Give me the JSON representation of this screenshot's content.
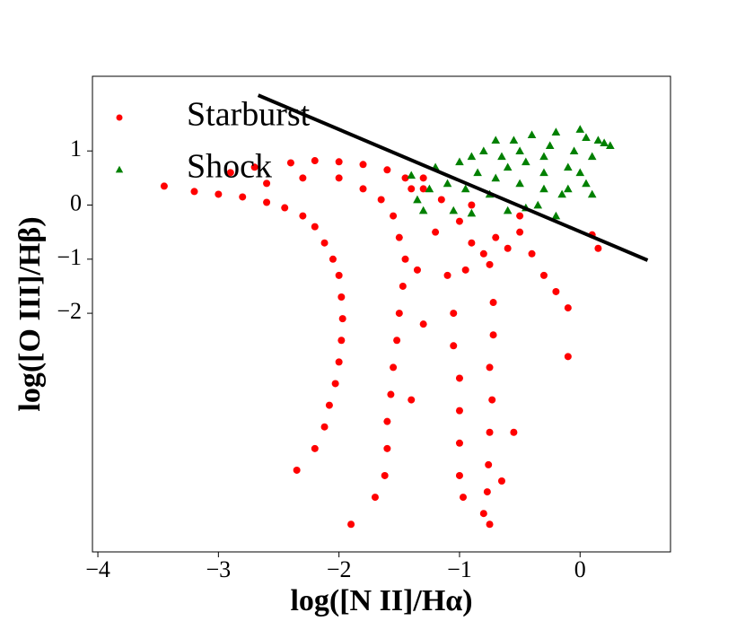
{
  "chart_data": {
    "type": "scatter",
    "xlabel": "log([N II]/Hα)",
    "ylabel": "log([O III]/Hβ)",
    "xlim": [
      -4.045,
      0.75
    ],
    "ylim": [
      -6.41,
      2.38
    ],
    "xticks": [
      {
        "value": -4,
        "label": "−4"
      },
      {
        "value": -3,
        "label": "−3"
      },
      {
        "value": -2,
        "label": "−2"
      },
      {
        "value": -1,
        "label": "−1"
      },
      0
    ],
    "yticks": [
      1,
      0,
      {
        "value": -1,
        "label": "−1"
      },
      {
        "value": -2,
        "label": "−2"
      }
    ],
    "legend": "upper left",
    "series": [
      {
        "name": "Starburst",
        "color": "#ff0000",
        "marker": "circle",
        "x": [
          -3.45,
          -3.2,
          -3.0,
          -2.8,
          -2.6,
          -2.45,
          -2.3,
          -2.2,
          -2.12,
          -2.05,
          -2.0,
          -1.98,
          -1.97,
          -1.98,
          -2.0,
          -2.03,
          -2.08,
          -2.12,
          -2.2,
          -2.35,
          -1.9,
          -2.9,
          -2.7,
          -2.4,
          -2.2,
          -2.0,
          -1.8,
          -1.6,
          -1.45,
          -1.3,
          -1.15,
          -2.6,
          -2.3,
          -2.0,
          -1.8,
          -1.65,
          -1.55,
          -1.5,
          -1.45,
          -1.47,
          -1.5,
          -1.52,
          -1.55,
          -1.57,
          -1.6,
          -1.6,
          -1.62,
          -1.7,
          -1.35,
          -1.3,
          -1.4,
          -1.1,
          -1.05,
          -1.05,
          -1.0,
          -1.0,
          -1.0,
          -1.0,
          -0.97,
          -0.72,
          -0.72,
          -0.75,
          -0.73,
          -0.75,
          -0.76,
          -0.77,
          -0.75,
          -0.8,
          -0.65,
          -0.55,
          -1.2,
          -1.0,
          -0.9,
          -0.8,
          -0.7,
          -0.6,
          -0.75,
          -0.5,
          -0.4,
          -0.3,
          -0.2,
          -0.1,
          0.15,
          -0.1,
          -1.3,
          -1.4,
          -0.9,
          -0.5,
          0.1,
          -0.95
        ],
        "y": [
          0.35,
          0.25,
          0.2,
          0.15,
          0.05,
          -0.05,
          -0.2,
          -0.4,
          -0.7,
          -1.0,
          -1.3,
          -1.7,
          -2.1,
          -2.5,
          -2.9,
          -3.3,
          -3.7,
          -4.1,
          -4.5,
          -4.9,
          -5.9,
          0.6,
          0.7,
          0.78,
          0.82,
          0.8,
          0.75,
          0.65,
          0.5,
          0.3,
          0.1,
          0.4,
          0.5,
          0.5,
          0.3,
          0.1,
          -0.2,
          -0.6,
          -1.0,
          -1.5,
          -2.0,
          -2.5,
          -3.0,
          -3.5,
          -4.0,
          -4.5,
          -5.0,
          -5.4,
          -1.2,
          -2.2,
          -3.6,
          -1.3,
          -2.0,
          -2.6,
          -3.2,
          -3.8,
          -4.4,
          -5.0,
          -5.4,
          -1.8,
          -2.4,
          -3.0,
          -3.6,
          -4.2,
          -4.8,
          -5.3,
          -5.9,
          -5.7,
          -5.1,
          -4.2,
          -0.5,
          -0.3,
          -0.7,
          -0.9,
          -0.6,
          -0.8,
          -1.1,
          -0.5,
          -0.9,
          -1.3,
          -1.6,
          -1.9,
          -0.8,
          -2.8,
          0.5,
          0.3,
          0.0,
          -0.2,
          -0.55,
          -1.2
        ]
      },
      {
        "name": "Shock",
        "color": "#008000",
        "marker": "triangle",
        "x": [
          -1.4,
          -1.35,
          -1.3,
          -1.2,
          -1.1,
          -1.05,
          -1.0,
          -0.95,
          -0.9,
          -0.85,
          -0.8,
          -0.75,
          -0.7,
          -0.65,
          -0.6,
          -0.55,
          -0.5,
          -0.45,
          -0.4,
          -0.35,
          -0.3,
          -0.25,
          -0.2,
          -0.15,
          -0.1,
          -0.05,
          0.0,
          0.05,
          0.1,
          0.15,
          0.2,
          0.25,
          -0.6,
          -0.3,
          0.0,
          0.1,
          -0.5,
          -0.2,
          -0.9,
          -0.45,
          -1.25,
          -0.7,
          -0.1,
          0.05,
          -0.3
        ],
        "y": [
          0.55,
          0.1,
          -0.1,
          0.7,
          0.4,
          -0.1,
          0.8,
          0.3,
          -0.15,
          0.6,
          1.0,
          0.2,
          0.5,
          0.9,
          -0.1,
          1.2,
          0.4,
          0.8,
          1.3,
          0.0,
          0.6,
          1.1,
          1.35,
          0.2,
          0.7,
          1.0,
          1.4,
          0.4,
          0.9,
          1.2,
          1.15,
          1.1,
          0.7,
          0.9,
          0.6,
          0.2,
          1.0,
          -0.2,
          0.9,
          -0.05,
          0.3,
          1.2,
          0.3,
          1.25,
          0.3
        ]
      }
    ],
    "lines": [
      {
        "color": "#000000",
        "x": [
          -2.67,
          0.56
        ],
        "y": [
          2.03,
          -1.02
        ]
      }
    ]
  }
}
